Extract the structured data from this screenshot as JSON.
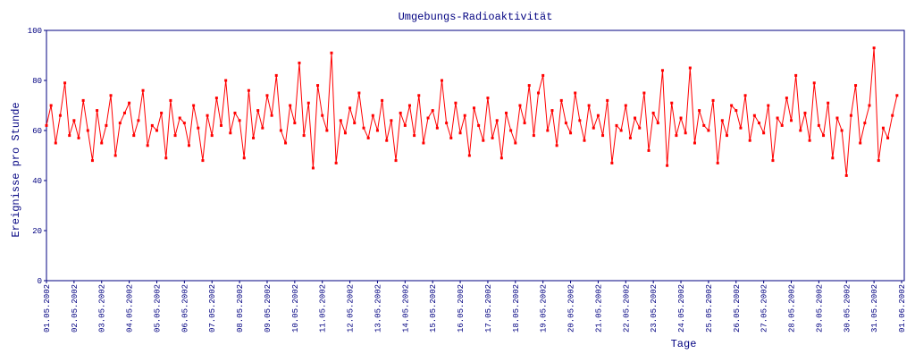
{
  "chart_data": {
    "type": "line",
    "title": "Umgebungs-Radioaktivität",
    "x_label": "Tage",
    "y_label": "Ereignisse pro Stunde",
    "xlim": [
      0,
      744
    ],
    "ylim": [
      0,
      100
    ],
    "yticks": [
      0,
      20,
      40,
      60,
      80,
      100
    ],
    "xticks": [
      {
        "value": 0,
        "label": "01.05.2002"
      },
      {
        "value": 24,
        "label": "02.05.2002"
      },
      {
        "value": 48,
        "label": "03.05.2002"
      },
      {
        "value": 72,
        "label": "04.05.2002"
      },
      {
        "value": 96,
        "label": "05.05.2002"
      },
      {
        "value": 120,
        "label": "06.05.2002"
      },
      {
        "value": 144,
        "label": "07.05.2002"
      },
      {
        "value": 168,
        "label": "08.05.2002"
      },
      {
        "value": 192,
        "label": "09.05.2002"
      },
      {
        "value": 216,
        "label": "10.05.2002"
      },
      {
        "value": 240,
        "label": "11.05.2002"
      },
      {
        "value": 264,
        "label": "12.05.2002"
      },
      {
        "value": 288,
        "label": "13.05.2002"
      },
      {
        "value": 312,
        "label": "14.05.2002"
      },
      {
        "value": 336,
        "label": "15.05.2002"
      },
      {
        "value": 360,
        "label": "16.05.2002"
      },
      {
        "value": 384,
        "label": "17.05.2002"
      },
      {
        "value": 408,
        "label": "18.05.2002"
      },
      {
        "value": 432,
        "label": "19.05.2002"
      },
      {
        "value": 456,
        "label": "20.05.2002"
      },
      {
        "value": 480,
        "label": "21.05.2002"
      },
      {
        "value": 504,
        "label": "22.05.2002"
      },
      {
        "value": 528,
        "label": "23.05.2002"
      },
      {
        "value": 552,
        "label": "24.05.2002"
      },
      {
        "value": 576,
        "label": "25.05.2002"
      },
      {
        "value": 600,
        "label": "26.05.2002"
      },
      {
        "value": 624,
        "label": "27.05.2002"
      },
      {
        "value": 648,
        "label": "28.05.2002"
      },
      {
        "value": 672,
        "label": "29.05.2002"
      },
      {
        "value": 696,
        "label": "30.05.2002"
      },
      {
        "value": 720,
        "label": "31.05.2002"
      },
      {
        "value": 744,
        "label": "01.06.2002"
      }
    ],
    "color": "#ff0000",
    "x": [
      0,
      4,
      8,
      12,
      16,
      20,
      24,
      28,
      32,
      36,
      40,
      44,
      48,
      52,
      56,
      60,
      64,
      68,
      72,
      76,
      80,
      84,
      88,
      92,
      96,
      100,
      104,
      108,
      112,
      116,
      120,
      124,
      128,
      132,
      136,
      140,
      144,
      148,
      152,
      156,
      160,
      164,
      168,
      172,
      176,
      180,
      184,
      188,
      192,
      196,
      200,
      204,
      208,
      212,
      216,
      220,
      224,
      228,
      232,
      236,
      240,
      244,
      248,
      252,
      256,
      260,
      264,
      268,
      272,
      276,
      280,
      284,
      288,
      292,
      296,
      300,
      304,
      308,
      312,
      316,
      320,
      324,
      328,
      332,
      336,
      340,
      344,
      348,
      352,
      356,
      360,
      364,
      368,
      372,
      376,
      380,
      384,
      388,
      392,
      396,
      400,
      404,
      408,
      412,
      416,
      420,
      424,
      428,
      432,
      436,
      440,
      444,
      448,
      452,
      456,
      460,
      464,
      468,
      472,
      476,
      480,
      484,
      488,
      492,
      496,
      500,
      504,
      508,
      512,
      516,
      520,
      524,
      528,
      532,
      536,
      540,
      544,
      548,
      552,
      556,
      560,
      564,
      568,
      572,
      576,
      580,
      584,
      588,
      592,
      596,
      600,
      604,
      608,
      612,
      616,
      620,
      624,
      628,
      632,
      636,
      640,
      644,
      648,
      652,
      656,
      660,
      664,
      668,
      672,
      676,
      680,
      684,
      688,
      692,
      696,
      700,
      704,
      708,
      712,
      716,
      720,
      724,
      728,
      732,
      736,
      740
    ],
    "values": [
      62,
      70,
      55,
      66,
      79,
      58,
      64,
      57,
      72,
      60,
      48,
      68,
      55,
      62,
      74,
      50,
      63,
      67,
      71,
      58,
      64,
      76,
      54,
      62,
      60,
      67,
      49,
      72,
      58,
      65,
      63,
      54,
      70,
      61,
      48,
      66,
      58,
      73,
      62,
      80,
      59,
      67,
      64,
      49,
      76,
      57,
      68,
      61,
      74,
      66,
      82,
      60,
      55,
      70,
      63,
      87,
      58,
      71,
      45,
      78,
      66,
      60,
      91,
      47,
      64,
      59,
      69,
      63,
      75,
      61,
      57,
      66,
      60,
      72,
      56,
      64,
      48,
      67,
      62,
      70,
      58,
      74,
      55,
      65,
      68,
      61,
      80,
      63,
      57,
      71,
      59,
      66,
      50,
      69,
      62,
      56,
      73,
      57,
      64,
      49,
      67,
      60,
      55,
      70,
      63,
      78,
      58,
      75,
      82,
      60,
      68,
      54,
      72,
      63,
      59,
      75,
      64,
      56,
      70,
      61,
      66,
      58,
      72,
      47,
      62,
      60,
      70,
      57,
      65,
      61,
      75,
      52,
      67,
      63,
      84,
      46,
      71,
      58,
      65,
      59,
      85,
      55,
      68,
      62,
      60,
      72,
      47,
      64,
      58,
      70,
      68,
      61,
      74,
      56,
      66,
      63,
      59,
      70,
      48,
      65,
      62,
      73,
      64,
      82,
      60,
      67,
      56,
      79,
      62,
      58,
      71,
      49,
      65,
      60,
      42,
      66,
      78,
      55,
      63,
      70,
      93,
      48,
      61,
      57,
      66,
      74
    ]
  }
}
